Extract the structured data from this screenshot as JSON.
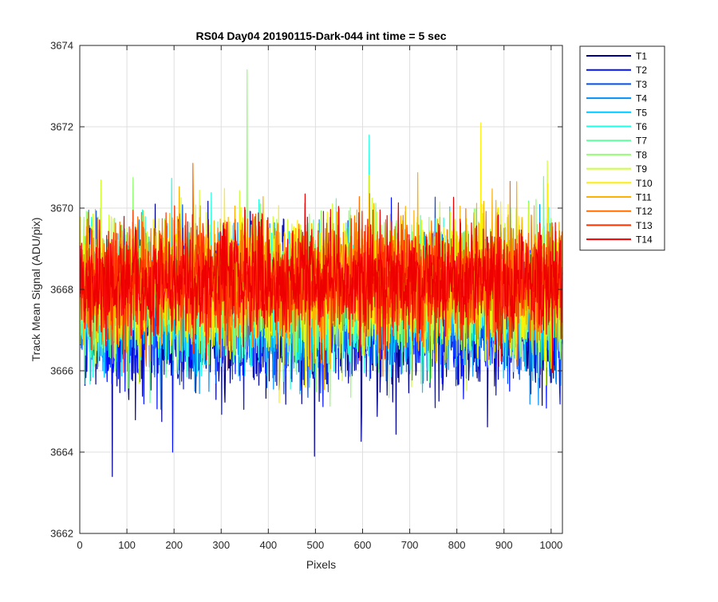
{
  "chart_data": {
    "type": "line",
    "title": "RS04 Day04 20190115-Dark-044 int time = 5 sec",
    "xlabel": "Pixels",
    "ylabel": "Track Mean Signal (ADU/pix)",
    "xlim": [
      0,
      1024
    ],
    "ylim": [
      3662,
      3674
    ],
    "xticks": [
      0,
      100,
      200,
      300,
      400,
      500,
      600,
      700,
      800,
      900,
      1000
    ],
    "yticks": [
      3662,
      3664,
      3666,
      3668,
      3670,
      3672,
      3674
    ],
    "grid": true,
    "legend_position": "outside-top-right",
    "n_points": 1024,
    "series": [
      {
        "name": "T1",
        "color": "#00008f",
        "mean": 3667.2,
        "amp": 1.25
      },
      {
        "name": "T2",
        "color": "#0010ff",
        "mean": 3667.3,
        "amp": 1.2
      },
      {
        "name": "T3",
        "color": "#0050ff",
        "mean": 3667.5,
        "amp": 1.15
      },
      {
        "name": "T4",
        "color": "#0090ff",
        "mean": 3667.6,
        "amp": 1.1
      },
      {
        "name": "T5",
        "color": "#00c8ff",
        "mean": 3667.7,
        "amp": 1.1
      },
      {
        "name": "T6",
        "color": "#20ffdf",
        "mean": 3667.8,
        "amp": 1.1
      },
      {
        "name": "T7",
        "color": "#60ffa0",
        "mean": 3667.9,
        "amp": 1.1
      },
      {
        "name": "T8",
        "color": "#90ff70",
        "mean": 3668.0,
        "amp": 1.15
      },
      {
        "name": "T9",
        "color": "#cfff30",
        "mean": 3668.1,
        "amp": 1.1
      },
      {
        "name": "T10",
        "color": "#ffef00",
        "mean": 3668.1,
        "amp": 1.1
      },
      {
        "name": "T11",
        "color": "#ffb000",
        "mean": 3668.2,
        "amp": 1.1
      },
      {
        "name": "T12",
        "color": "#ff7000",
        "mean": 3668.2,
        "amp": 1.05
      },
      {
        "name": "T13",
        "color": "#ff3000",
        "mean": 3668.2,
        "amp": 1.0
      },
      {
        "name": "T14",
        "color": "#ef0000",
        "mean": 3668.2,
        "amp": 0.95
      }
    ],
    "annotations": [
      {
        "series": "T8",
        "x": 354,
        "y": 3673.4
      },
      {
        "series": "T10",
        "x": 850,
        "y": 3672.1
      },
      {
        "series": "T6",
        "x": 613,
        "y": 3671.8
      },
      {
        "series": "T1",
        "x": 68,
        "y": 3663.4
      },
      {
        "series": "T1",
        "x": 497,
        "y": 3663.9
      },
      {
        "series": "T2",
        "x": 196,
        "y": 3664.0
      }
    ]
  }
}
